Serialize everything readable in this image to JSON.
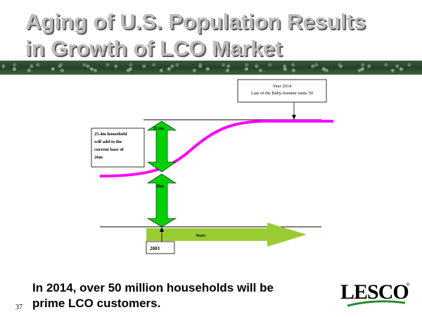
{
  "slide": {
    "title_line1": "Aging of U.S. Population Results",
    "title_line2": "in Growth of LCO Market",
    "caption_line1": "In 2014, over 50 million households will be",
    "caption_line2": "prime LCO customers.",
    "slide_number": "37",
    "logo_text": "LESCO",
    "logo_mark": "®"
  },
  "diagram": {
    "callout_year_line1": "Year 2014",
    "callout_year_line2": "Last of the Baby-boomer turns 50",
    "callout_household_lines": [
      "25.4m household",
      "will add to the",
      "current base of",
      "26m"
    ],
    "upper_arrow_label": "25.4m",
    "lower_arrow_label": "26m",
    "years_label": "Years",
    "year_box": "2003",
    "colors": {
      "curve": "#ff00ff",
      "double_arrow": "#00d000",
      "years_arrow": "#99cc33"
    }
  }
}
